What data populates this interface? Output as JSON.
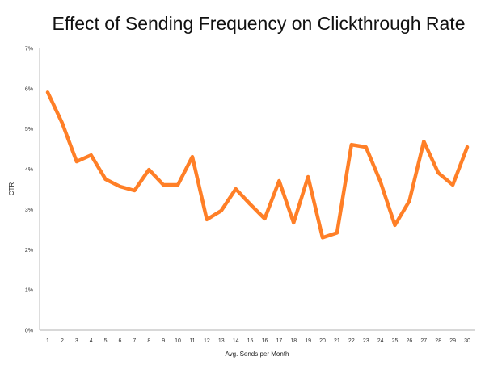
{
  "chart_data": {
    "type": "line",
    "title": "Effect of Sending Frequency on Clickthrough Rate",
    "xlabel": "Avg. Sends per Month",
    "ylabel": "CTR",
    "x": [
      1,
      2,
      3,
      4,
      5,
      6,
      7,
      8,
      9,
      10,
      11,
      12,
      13,
      14,
      15,
      16,
      17,
      18,
      19,
      20,
      21,
      22,
      23,
      24,
      25,
      26,
      27,
      28,
      29,
      30
    ],
    "series": [
      {
        "name": "CTR",
        "color": "#FF7F27",
        "values": [
          5.91,
          5.15,
          4.19,
          4.35,
          3.75,
          3.57,
          3.47,
          3.99,
          3.61,
          3.61,
          4.31,
          2.75,
          2.97,
          3.51,
          3.13,
          2.77,
          3.71,
          2.67,
          3.81,
          2.3,
          2.42,
          4.61,
          4.55,
          3.69,
          2.61,
          3.21,
          4.69,
          3.91,
          3.61,
          4.55
        ]
      }
    ],
    "ylim": [
      0,
      7
    ],
    "yticks": [
      "0%",
      "1%",
      "2%",
      "3%",
      "4%",
      "5%",
      "6%",
      "7%"
    ],
    "grid": false,
    "legend": "none"
  }
}
